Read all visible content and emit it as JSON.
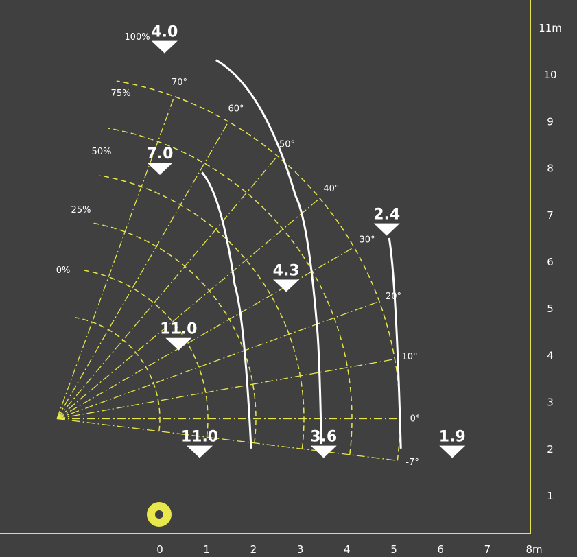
{
  "colors": {
    "background": "#404040",
    "grid": "#e6e64a",
    "crane": "#e8e84d",
    "curves": "#ffffff",
    "frame": "#e6e64a"
  },
  "chart_data": {
    "type": "load-chart",
    "x_unit_label": "8m",
    "y_unit_label": "11m",
    "x_ticks": [
      {
        "value": 0,
        "label": "0"
      },
      {
        "value": 1,
        "label": "1"
      },
      {
        "value": 2,
        "label": "2"
      },
      {
        "value": 3,
        "label": "3"
      },
      {
        "value": 4,
        "label": "4"
      },
      {
        "value": 5,
        "label": "5"
      },
      {
        "value": 6,
        "label": "6"
      },
      {
        "value": 7,
        "label": "7"
      },
      {
        "value": 8,
        "label": "8m"
      }
    ],
    "y_ticks": [
      {
        "value": 1,
        "label": "1"
      },
      {
        "value": 2,
        "label": "2"
      },
      {
        "value": 3,
        "label": "3"
      },
      {
        "value": 4,
        "label": "4"
      },
      {
        "value": 5,
        "label": "5"
      },
      {
        "value": 6,
        "label": "6"
      },
      {
        "value": 7,
        "label": "7"
      },
      {
        "value": 8,
        "label": "8"
      },
      {
        "value": 9,
        "label": "9"
      },
      {
        "value": 10,
        "label": "10"
      },
      {
        "value": 11,
        "label": "11m"
      }
    ],
    "boom_angles": [
      {
        "deg": -7,
        "label": "-7°"
      },
      {
        "deg": 0,
        "label": "0°"
      },
      {
        "deg": 10,
        "label": "10°"
      },
      {
        "deg": 20,
        "label": "20°"
      },
      {
        "deg": 30,
        "label": "30°"
      },
      {
        "deg": 40,
        "label": "40°"
      },
      {
        "deg": 50,
        "label": "50°"
      },
      {
        "deg": 60,
        "label": "60°"
      },
      {
        "deg": 70,
        "label": "70°"
      }
    ],
    "extension_levels": [
      {
        "pct": 0,
        "label": "0%"
      },
      {
        "pct": 25,
        "label": "25%"
      },
      {
        "pct": 50,
        "label": "50%"
      },
      {
        "pct": 75,
        "label": "75%"
      },
      {
        "pct": 100,
        "label": "100%"
      }
    ],
    "capacity_curves": [
      {
        "load": "11.0",
        "points": [
          [
            0.9,
            7.9
          ],
          [
            1.6,
            5.5
          ],
          [
            1.95,
            2.0
          ]
        ]
      },
      {
        "load": "4.3",
        "points": [
          [
            1.2,
            10.3
          ],
          [
            2.9,
            7.4
          ],
          [
            3.35,
            4.7
          ],
          [
            3.45,
            2.1
          ]
        ]
      },
      {
        "load": "2.4",
        "points": [
          [
            4.9,
            6.5
          ],
          [
            5.15,
            2.0
          ]
        ]
      }
    ],
    "load_labels": [
      {
        "text": "4.0",
        "x": 0.1,
        "y": 10.8
      },
      {
        "text": "7.0",
        "x": 0.0,
        "y": 8.2
      },
      {
        "text": "11.0",
        "x": 0.4,
        "y": 4.45
      },
      {
        "text": "2.4",
        "x": 4.85,
        "y": 6.9
      },
      {
        "text": "4.3",
        "x": 2.7,
        "y": 5.7
      },
      {
        "text": "11.0",
        "x": 0.85,
        "y": 2.15
      },
      {
        "text": "3.6",
        "x": 3.5,
        "y": 2.15
      },
      {
        "text": "1.9",
        "x": 6.25,
        "y": 2.15
      }
    ]
  }
}
